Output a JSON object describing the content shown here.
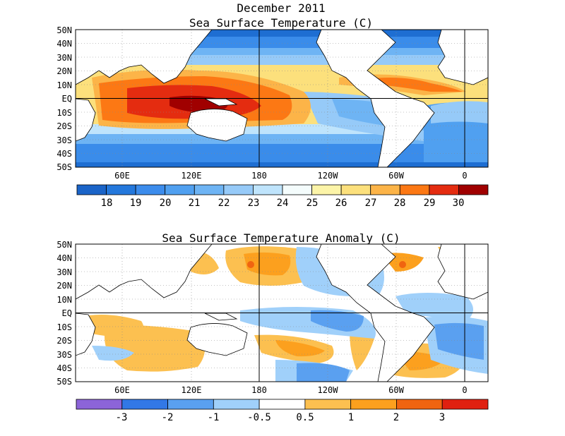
{
  "header": {
    "date_title": "December 2011",
    "panel1_title": "Sea Surface Temperature (C)",
    "panel2_title": "Sea Surface Temperature Anomaly (C)"
  },
  "axes": {
    "lat_labels": [
      "50N",
      "40N",
      "30N",
      "20N",
      "10N",
      "EQ",
      "10S",
      "20S",
      "30S",
      "40S",
      "50S"
    ],
    "lon_labels": [
      "60E",
      "120E",
      "180",
      "120W",
      "60W",
      "0"
    ]
  },
  "panel1": {
    "colorbar_labels": [
      "18",
      "19",
      "20",
      "21",
      "22",
      "23",
      "24",
      "25",
      "26",
      "27",
      "28",
      "29",
      "30"
    ],
    "colorbar_colors": [
      "#1a64c8",
      "#2478dc",
      "#3c8cec",
      "#50a0f0",
      "#6eb4f4",
      "#96caf8",
      "#bfe4fc",
      "#f4fcfc",
      "#fcf4a8",
      "#fce07c",
      "#fcb448",
      "#fc7814",
      "#e42c10",
      "#a00000"
    ]
  },
  "panel2": {
    "colorbar_labels": [
      "-3",
      "-2",
      "-1",
      "-0.5",
      "0.5",
      "1",
      "2",
      "3"
    ],
    "colorbar_colors": [
      "#8c64d8",
      "#3278e6",
      "#5aa0f0",
      "#a0d0fa",
      "#ffffff",
      "#fcc050",
      "#fca01e",
      "#f06410",
      "#e02010"
    ]
  }
}
